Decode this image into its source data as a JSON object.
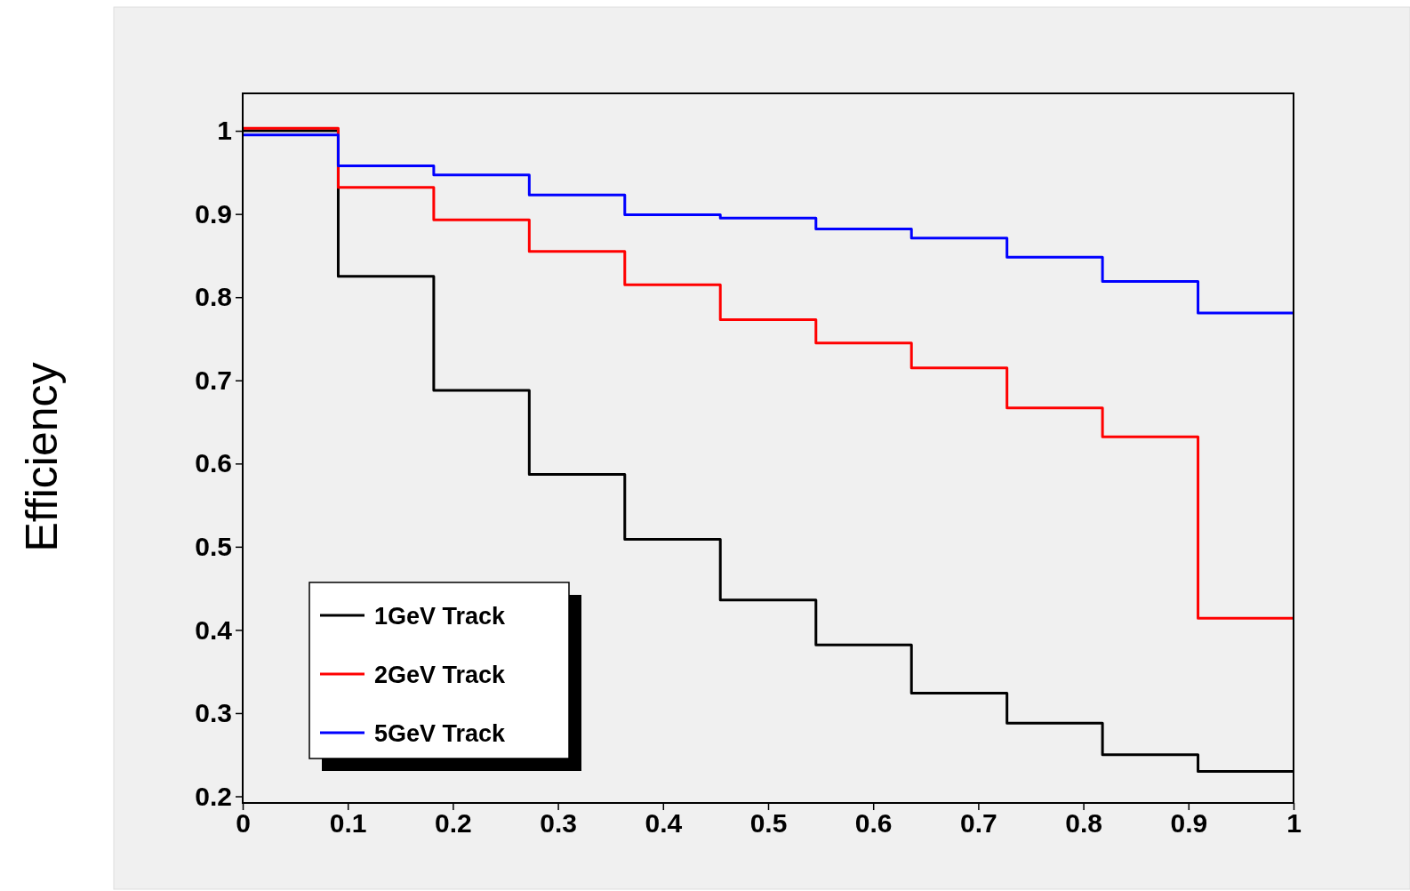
{
  "chart_data": {
    "type": "histogram",
    "ylabel": "Efficiency",
    "bins": [
      0,
      0.0909,
      0.1818,
      0.2727,
      0.3636,
      0.4545,
      0.5455,
      0.6364,
      0.7273,
      0.8182,
      0.9091,
      1
    ],
    "series": [
      {
        "name": "1GeV Track",
        "color": "#000000",
        "values": [
          1.0,
          0.825,
          0.688,
          0.587,
          0.509,
          0.436,
          0.382,
          0.324,
          0.288,
          0.25,
          0.23
        ]
      },
      {
        "name": "2GeV Track",
        "color": "#ff0000",
        "values": [
          1.003,
          0.932,
          0.893,
          0.855,
          0.815,
          0.773,
          0.745,
          0.715,
          0.667,
          0.632,
          0.414
        ]
      },
      {
        "name": "5GeV Track",
        "color": "#0000ff",
        "values": [
          0.995,
          0.958,
          0.947,
          0.923,
          0.899,
          0.895,
          0.882,
          0.871,
          0.848,
          0.819,
          0.781
        ]
      }
    ],
    "xlim": [
      0,
      1
    ],
    "xticks": [
      0,
      0.1,
      0.2,
      0.3,
      0.4,
      0.5,
      0.6,
      0.7,
      0.8,
      0.9,
      1
    ],
    "ylim": [
      0.192,
      1.045
    ],
    "yticks": [
      0.2,
      0.3,
      0.4,
      0.5,
      0.6,
      0.7,
      0.8,
      0.9,
      1
    ],
    "legend": "bottom left"
  }
}
